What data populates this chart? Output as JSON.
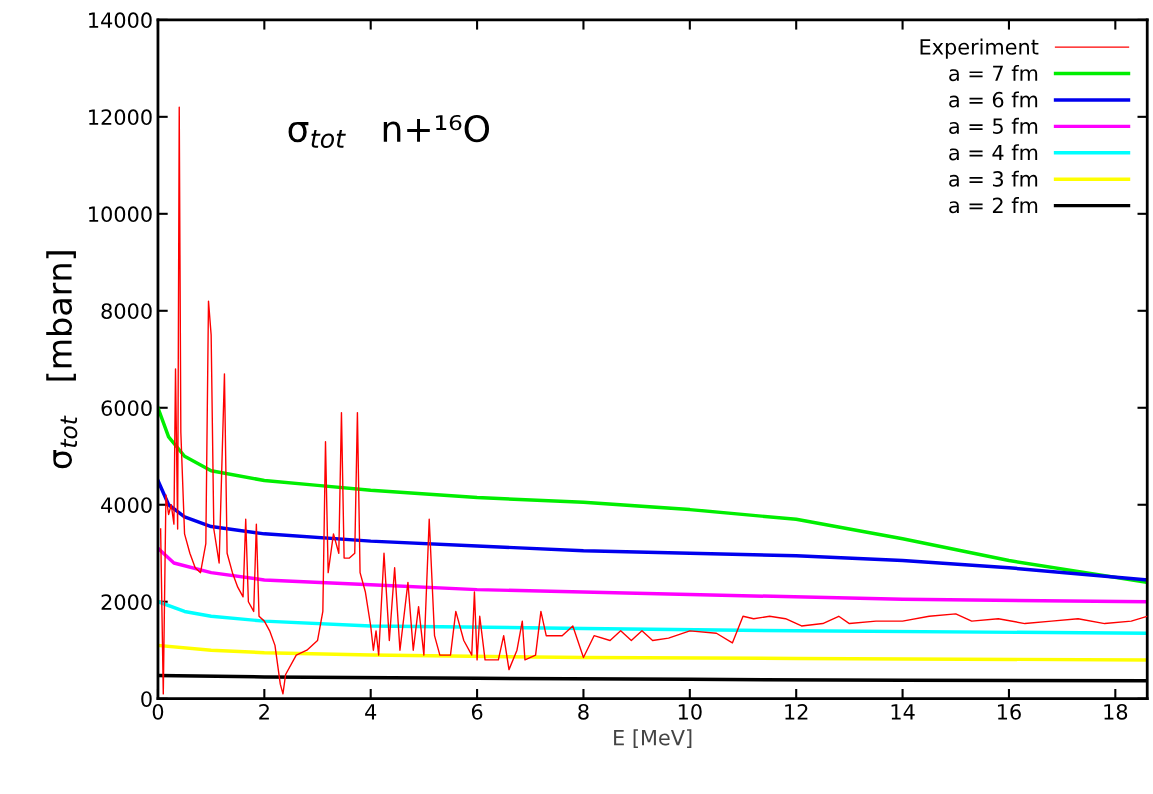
{
  "chart_data": {
    "type": "line",
    "xlabel": "E [MeV]",
    "ylabel": "σ$_{tot}$   [mbarn]",
    "annotations": [
      "σ$_{tot}$   n+¹⁶O"
    ],
    "xlim": [
      0,
      18.6
    ],
    "ylim": [
      0,
      14000
    ],
    "xticks": [
      0,
      2,
      4,
      6,
      8,
      10,
      12,
      14,
      16,
      18
    ],
    "yticks": [
      0,
      2000,
      4000,
      6000,
      8000,
      10000,
      12000,
      14000
    ],
    "legend": "top right",
    "grid": false,
    "marker": "none",
    "line_style": "solid",
    "series": [
      {
        "name": "Experiment",
        "color": "#ff0000",
        "x": [
          0.05,
          0.1,
          0.15,
          0.2,
          0.25,
          0.3,
          0.33,
          0.37,
          0.4,
          0.43,
          0.5,
          0.6,
          0.7,
          0.8,
          0.9,
          0.95,
          1.0,
          1.05,
          1.15,
          1.25,
          1.3,
          1.4,
          1.5,
          1.6,
          1.65,
          1.7,
          1.8,
          1.85,
          1.9,
          2.0,
          2.1,
          2.2,
          2.3,
          2.35,
          2.4,
          2.6,
          2.8,
          3.0,
          3.1,
          3.15,
          3.2,
          3.3,
          3.4,
          3.45,
          3.5,
          3.6,
          3.7,
          3.75,
          3.8,
          3.9,
          4.0,
          4.05,
          4.1,
          4.15,
          4.25,
          4.35,
          4.45,
          4.55,
          4.7,
          4.8,
          4.9,
          5.0,
          5.1,
          5.2,
          5.3,
          5.5,
          5.6,
          5.75,
          5.9,
          5.95,
          6.0,
          6.05,
          6.15,
          6.4,
          6.5,
          6.6,
          6.75,
          6.85,
          6.9,
          7.1,
          7.2,
          7.3,
          7.6,
          7.8,
          8.0,
          8.2,
          8.5,
          8.7,
          8.9,
          9.1,
          9.3,
          9.6,
          10.0,
          10.5,
          10.8,
          11.0,
          11.2,
          11.5,
          11.8,
          12.1,
          12.5,
          12.8,
          13.0,
          13.5,
          14.0,
          14.5,
          15.0,
          15.3,
          15.8,
          16.3,
          16.8,
          17.3,
          17.8,
          18.3,
          18.6
        ],
        "values": [
          3500,
          100,
          4200,
          3800,
          4000,
          3600,
          6800,
          3500,
          12200,
          5500,
          3400,
          3000,
          2700,
          2600,
          3200,
          8200,
          7500,
          3500,
          2800,
          6700,
          3000,
          2600,
          2300,
          2100,
          3700,
          2000,
          1800,
          3600,
          1700,
          1600,
          1400,
          1100,
          300,
          100,
          500,
          900,
          1000,
          1200,
          1800,
          5300,
          2600,
          3400,
          3000,
          5900,
          2900,
          2900,
          3000,
          5900,
          2600,
          2200,
          1500,
          1000,
          1400,
          900,
          3000,
          1200,
          2700,
          1000,
          2400,
          1000,
          1900,
          900,
          3700,
          1300,
          900,
          900,
          1800,
          1200,
          900,
          2200,
          800,
          1700,
          800,
          800,
          1300,
          600,
          1000,
          1600,
          800,
          900,
          1800,
          1300,
          1300,
          1500,
          850,
          1300,
          1200,
          1400,
          1200,
          1400,
          1200,
          1250,
          1400,
          1350,
          1150,
          1700,
          1650,
          1700,
          1650,
          1500,
          1550,
          1700,
          1550,
          1600,
          1600,
          1700,
          1750,
          1600,
          1650,
          1550,
          1600,
          1650,
          1550,
          1600,
          1700
        ]
      },
      {
        "name": "a = 7 fm",
        "color": "#00ee00",
        "x": [
          0,
          0.2,
          0.5,
          1,
          2,
          3,
          4,
          6,
          8,
          10,
          12,
          14,
          16,
          18.6
        ],
        "values": [
          6000,
          5400,
          5000,
          4700,
          4500,
          4400,
          4300,
          4150,
          4050,
          3900,
          3700,
          3300,
          2850,
          2400
        ]
      },
      {
        "name": "a = 6 fm",
        "color": "#0000ee",
        "x": [
          0,
          0.2,
          0.5,
          1,
          2,
          4,
          6,
          8,
          10,
          12,
          14,
          16,
          18.6
        ],
        "values": [
          4500,
          4000,
          3750,
          3550,
          3400,
          3250,
          3150,
          3050,
          3000,
          2950,
          2850,
          2700,
          2450
        ]
      },
      {
        "name": "a = 5 fm",
        "color": "#ff00ff",
        "x": [
          0,
          0.3,
          1,
          2,
          4,
          6,
          10,
          14,
          18.6
        ],
        "values": [
          3100,
          2800,
          2600,
          2450,
          2350,
          2250,
          2150,
          2050,
          2000
        ]
      },
      {
        "name": "a = 4 fm",
        "color": "#00ffff",
        "x": [
          0,
          0.5,
          1,
          2,
          4,
          8,
          12,
          18.6
        ],
        "values": [
          2000,
          1800,
          1700,
          1600,
          1500,
          1450,
          1400,
          1350
        ]
      },
      {
        "name": "a = 3 fm",
        "color": "#ffff00",
        "x": [
          0,
          1,
          2,
          4,
          8,
          12,
          18.6
        ],
        "values": [
          1100,
          1000,
          950,
          900,
          850,
          830,
          800
        ]
      },
      {
        "name": "a = 2 fm",
        "color": "#000000",
        "x": [
          0,
          2,
          6,
          10,
          14,
          18.6
        ],
        "values": [
          480,
          450,
          420,
          400,
          380,
          370
        ]
      }
    ]
  }
}
